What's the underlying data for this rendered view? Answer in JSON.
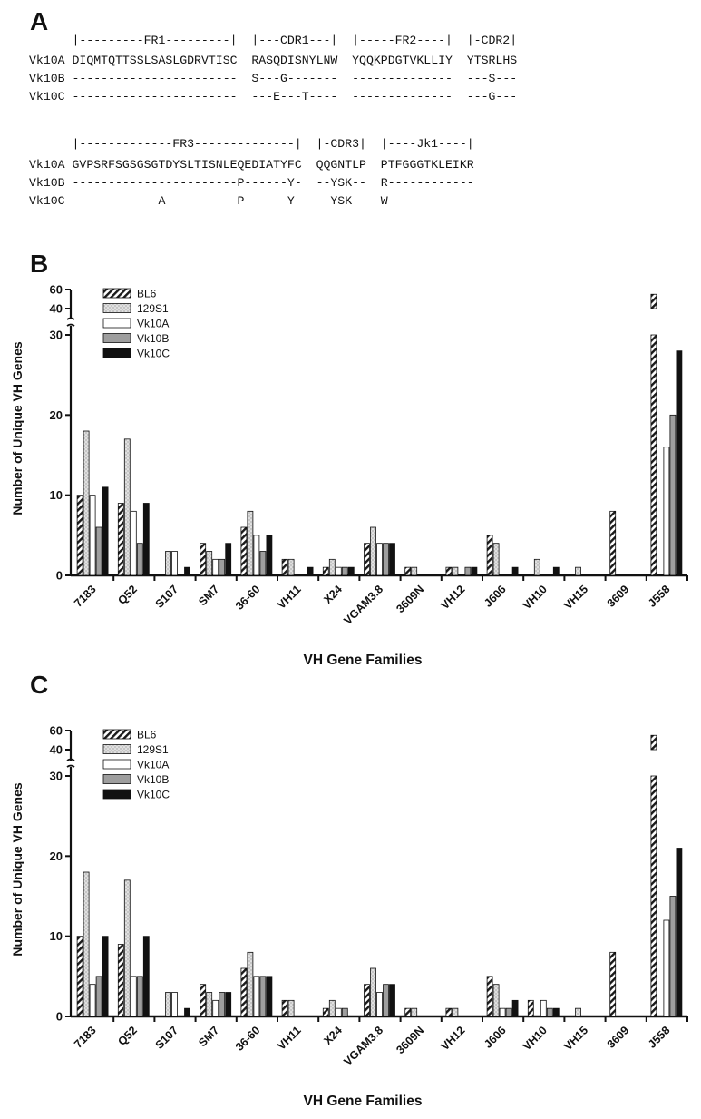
{
  "panels": {
    "a": "A",
    "b": "B",
    "c": "C"
  },
  "alignment": {
    "block1": {
      "header": "|---------FR1---------|  |---CDR1---|  |-----FR2----|  |-CDR2|",
      "rows": [
        {
          "name": "Vk10A",
          "seq": "DIQMTQTTSSLSASLGDRVTISC  RASQDISNYLNW  YQQKPDGTVKLLIY  YTSRLHS"
        },
        {
          "name": "Vk10B",
          "seq": "-----------------------  S---G-------  --------------  ---S---"
        },
        {
          "name": "Vk10C",
          "seq": "-----------------------  ---E---T----  --------------  ---G---"
        }
      ]
    },
    "block2": {
      "header": "|-------------FR3--------------|  |-CDR3|  |----Jk1----|",
      "rows": [
        {
          "name": "Vk10A",
          "seq": "GVPSRFSGSGSGTDYSLTISNLEQEDIATYFC  QQGNTLP  PTFGGGTKLEIKR"
        },
        {
          "name": "Vk10B",
          "seq": "-----------------------P------Y-  --YSK--  R------------"
        },
        {
          "name": "Vk10C",
          "seq": "------------A----------P------Y-  --YSK--  W------------"
        }
      ]
    }
  },
  "chart_data": [
    {
      "type": "bar",
      "panel": "B",
      "categories": [
        "7183",
        "Q52",
        "S107",
        "SM7",
        "36-60",
        "VH11",
        "X24",
        "VGAM3.8",
        "3609N",
        "VH12",
        "J606",
        "VH10",
        "VH15",
        "3609",
        "J558"
      ],
      "series": [
        {
          "name": "BL6",
          "values": [
            10,
            9,
            0,
            4,
            6,
            2,
            1,
            4,
            1,
            1,
            5,
            0,
            0,
            8,
            55
          ]
        },
        {
          "name": "129S1",
          "values": [
            18,
            17,
            3,
            3,
            8,
            2,
            2,
            6,
            1,
            1,
            4,
            2,
            1,
            0,
            0
          ]
        },
        {
          "name": "Vk10A",
          "values": [
            10,
            8,
            3,
            2,
            5,
            0,
            1,
            4,
            0,
            0,
            0,
            0,
            0,
            0,
            16
          ]
        },
        {
          "name": "Vk10B",
          "values": [
            6,
            4,
            0,
            2,
            3,
            0,
            1,
            4,
            0,
            1,
            0,
            0,
            0,
            0,
            20
          ]
        },
        {
          "name": "Vk10C",
          "values": [
            11,
            9,
            1,
            4,
            5,
            1,
            1,
            4,
            0,
            1,
            1,
            1,
            0,
            0,
            28
          ]
        }
      ],
      "ylabel": "Number of Unique VH Genes",
      "xlabel": "VH Gene Families",
      "yticks": [
        0,
        10,
        20,
        30,
        40,
        60
      ],
      "ylim": [
        0,
        60
      ],
      "axis_break": [
        30,
        40
      ],
      "legend": "top-left"
    },
    {
      "type": "bar",
      "panel": "C",
      "categories": [
        "7183",
        "Q52",
        "S107",
        "SM7",
        "36-60",
        "VH11",
        "X24",
        "VGAM3.8",
        "3609N",
        "VH12",
        "J606",
        "VH10",
        "VH15",
        "3609",
        "J558"
      ],
      "series": [
        {
          "name": "BL6",
          "values": [
            10,
            9,
            0,
            4,
            6,
            2,
            1,
            4,
            1,
            1,
            5,
            2,
            0,
            8,
            55
          ]
        },
        {
          "name": "129S1",
          "values": [
            18,
            17,
            3,
            3,
            8,
            2,
            2,
            6,
            1,
            1,
            4,
            0,
            1,
            0,
            0
          ]
        },
        {
          "name": "Vk10A",
          "values": [
            4,
            5,
            3,
            2,
            5,
            0,
            1,
            3,
            0,
            0,
            1,
            2,
            0,
            0,
            12
          ]
        },
        {
          "name": "Vk10B",
          "values": [
            5,
            5,
            0,
            3,
            5,
            0,
            1,
            4,
            0,
            0,
            1,
            1,
            0,
            0,
            15
          ]
        },
        {
          "name": "Vk10C",
          "values": [
            10,
            10,
            1,
            3,
            5,
            0,
            0,
            4,
            0,
            0,
            2,
            1,
            0,
            0,
            21
          ]
        }
      ],
      "ylabel": "Number of Unique VH Genes",
      "xlabel": "VH Gene Families",
      "yticks": [
        0,
        10,
        20,
        30,
        40,
        60
      ],
      "ylim": [
        0,
        60
      ],
      "axis_break": [
        30,
        40
      ],
      "legend": "top-left"
    }
  ]
}
